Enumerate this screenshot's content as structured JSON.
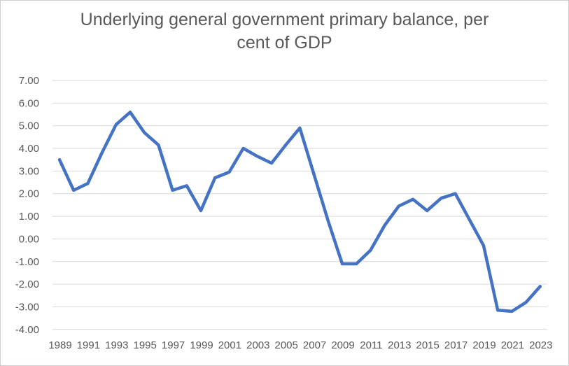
{
  "title": {
    "line1": "Underlying general government primary balance, per",
    "line2": "cent of GDP"
  },
  "colors": {
    "series_line": "#4472C4",
    "gridline": "#d9d9d9",
    "tick_text": "#595959"
  },
  "chart_data": {
    "type": "line",
    "title": "Underlying general government primary balance, per cent of GDP",
    "xlabel": "",
    "ylabel": "",
    "x": [
      1989,
      1990,
      1991,
      1992,
      1993,
      1994,
      1995,
      1996,
      1997,
      1998,
      1999,
      2000,
      2001,
      2002,
      2003,
      2004,
      2005,
      2006,
      2007,
      2008,
      2009,
      2010,
      2011,
      2012,
      2013,
      2014,
      2015,
      2016,
      2017,
      2018,
      2019,
      2020,
      2021,
      2022,
      2023
    ],
    "series": [
      {
        "name": "Underlying general government primary balance, per cent of GDP",
        "values": [
          3.5,
          2.15,
          2.45,
          3.8,
          5.05,
          5.6,
          4.7,
          4.15,
          2.15,
          2.35,
          1.25,
          2.7,
          2.95,
          4.0,
          3.65,
          3.35,
          4.15,
          4.9,
          2.85,
          0.8,
          -1.1,
          -1.1,
          -0.5,
          0.6,
          1.45,
          1.75,
          1.25,
          1.8,
          2.0,
          0.85,
          -0.3,
          -3.15,
          -3.2,
          -2.8,
          -2.1
        ]
      }
    ],
    "ylim": [
      -4,
      7
    ],
    "y_ticks": [
      7,
      6,
      5,
      4,
      3,
      2,
      1,
      0,
      -1,
      -2,
      -3,
      -4
    ],
    "y_tick_labels": [
      "7.00",
      "6.00",
      "5.00",
      "4.00",
      "3.00",
      "2.00",
      "1.00",
      "0.00",
      "-1.00",
      "-2.00",
      "-3.00",
      "-4.00"
    ],
    "x_tick_years": [
      1989,
      1991,
      1993,
      1995,
      1997,
      1999,
      2001,
      2003,
      2005,
      2007,
      2009,
      2011,
      2013,
      2015,
      2017,
      2019,
      2021,
      2023
    ],
    "grid": "horizontal",
    "legend": "none",
    "markers": "none"
  }
}
